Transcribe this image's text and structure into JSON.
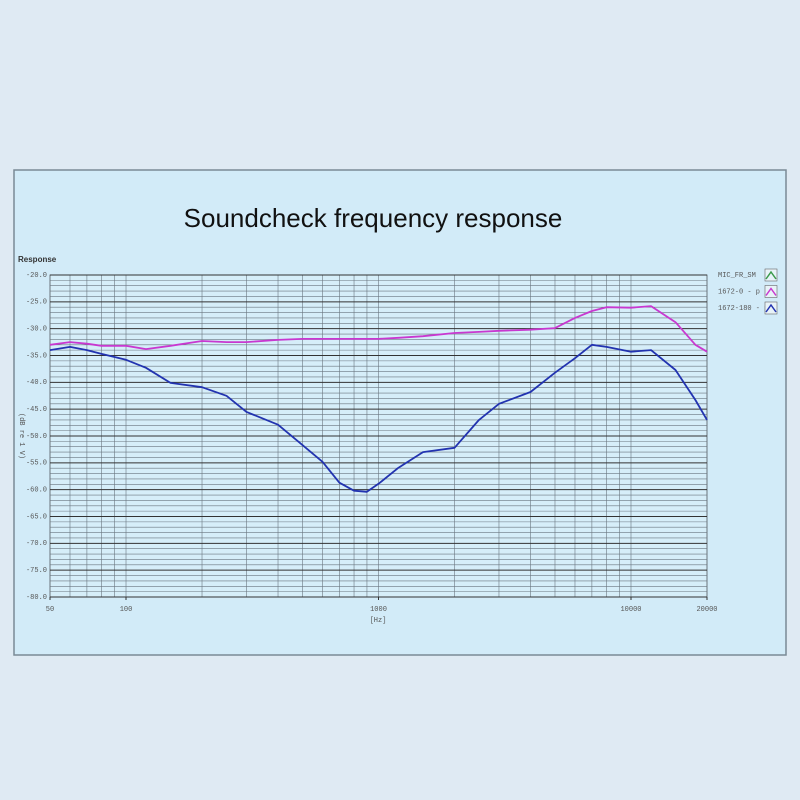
{
  "chart_data": {
    "type": "line",
    "title": "Soundcheck frequency response",
    "subtitle": "Response",
    "xlabel": "[Hz]",
    "ylabel": "(dB re 1 V)",
    "xscale": "log",
    "xlim": [
      50,
      20000
    ],
    "xticks": [
      50,
      100,
      1000,
      10000,
      20000
    ],
    "xgrid": [
      50,
      60,
      70,
      80,
      90,
      100,
      200,
      300,
      400,
      500,
      600,
      700,
      800,
      900,
      1000,
      2000,
      3000,
      4000,
      5000,
      6000,
      7000,
      8000,
      9000,
      10000,
      20000
    ],
    "ylim": [
      -80,
      -20
    ],
    "yticks": [
      {
        "value": -20,
        "label": "-20.0"
      },
      {
        "value": -25,
        "label": "-25.0"
      },
      {
        "value": -30,
        "label": "-30.0"
      },
      {
        "value": -35,
        "label": "-35.0"
      },
      {
        "value": -40,
        "label": "-40.0"
      },
      {
        "value": -45,
        "label": "-45.0"
      },
      {
        "value": -50,
        "label": "-50.0"
      },
      {
        "value": -55,
        "label": "-55.0"
      },
      {
        "value": -60,
        "label": "-60.0"
      },
      {
        "value": -65,
        "label": "-65.0"
      },
      {
        "value": -70,
        "label": "-70.0"
      },
      {
        "value": -75,
        "label": "-75.0"
      },
      {
        "value": -80,
        "label": "-80.0"
      }
    ],
    "ygrid": [
      -79,
      -78,
      -77,
      -76,
      -74,
      -73,
      -72,
      -71,
      -69,
      -68,
      -67,
      -66,
      -64,
      -63,
      -62,
      -61,
      -59,
      -58,
      -57,
      -56,
      -54,
      -53,
      -52,
      -51,
      -49,
      -48,
      -47,
      -46,
      -44,
      -43,
      -42,
      -41,
      -39,
      -38,
      -37,
      -36,
      -34,
      -33,
      -32,
      -31,
      -29,
      -28,
      -27,
      -26,
      -24,
      -23,
      -22,
      -21
    ],
    "grid": true,
    "legend": "right",
    "x": [
      50,
      60,
      70,
      80,
      100,
      120,
      150,
      200,
      250,
      300,
      400,
      500,
      600,
      700,
      800,
      900,
      1000,
      1200,
      1500,
      2000,
      2500,
      3000,
      4000,
      5000,
      6000,
      7000,
      8000,
      10000,
      12000,
      15000,
      18000,
      20000
    ],
    "series": [
      {
        "name": "MIC_FR_SM",
        "color": "#3a9a4a",
        "values": [
          null,
          null,
          null,
          null,
          null,
          null,
          null,
          null,
          null,
          null,
          null,
          null,
          null,
          null,
          null,
          null,
          null,
          null,
          null,
          null,
          null,
          null,
          null,
          null,
          null,
          null,
          null,
          null,
          null,
          null,
          null,
          null
        ]
      },
      {
        "name": "1672-0 - p",
        "color": "#c838d0",
        "values": [
          -33.0,
          -32.5,
          -32.8,
          -33.2,
          -33.2,
          -33.8,
          -33.2,
          -32.3,
          -32.5,
          -32.5,
          -32.1,
          -31.9,
          -31.9,
          -31.9,
          -31.9,
          -31.9,
          -31.9,
          -31.7,
          -31.4,
          -30.8,
          -30.6,
          -30.4,
          -30.2,
          -29.9,
          -28.0,
          -26.7,
          -26.0,
          -26.1,
          -25.8,
          -28.8,
          -33.0,
          -34.3
        ]
      },
      {
        "name": "1672-180 - p",
        "color": "#2233b0",
        "values": [
          -34.0,
          -33.4,
          -34.0,
          -34.7,
          -35.8,
          -37.3,
          -40.1,
          -40.9,
          -42.5,
          -45.5,
          -47.9,
          -51.7,
          -54.8,
          -58.7,
          -60.2,
          -60.4,
          -58.9,
          -55.9,
          -53.0,
          -52.2,
          -47.0,
          -44.0,
          -41.8,
          -38.2,
          -35.5,
          -33.0,
          -33.4,
          -34.3,
          -34.0,
          -37.7,
          -43.3,
          -47.0
        ]
      }
    ]
  }
}
